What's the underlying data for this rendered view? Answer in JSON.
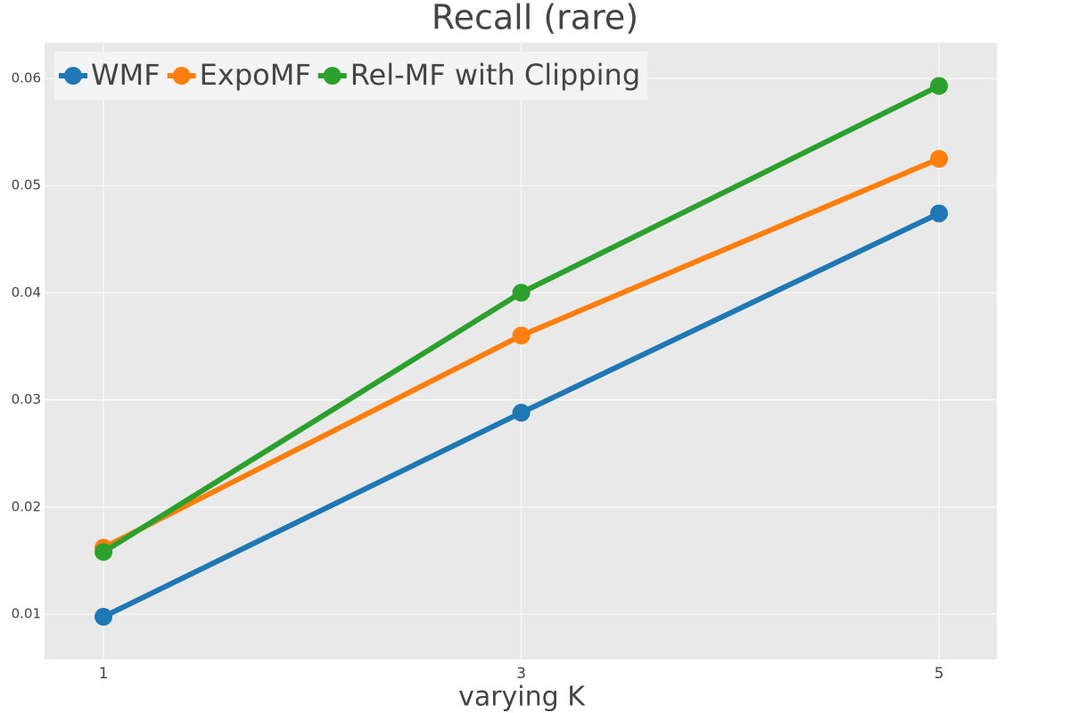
{
  "chart_data": {
    "type": "line",
    "title": "Recall (rare)",
    "x_label": "varying K",
    "x": [
      1,
      3,
      5
    ],
    "series": [
      {
        "name": "WMF",
        "color": "#1f77b4",
        "values": [
          0.00975,
          0.0288,
          0.0474
        ]
      },
      {
        "name": "ExpoMF",
        "color": "#ff7f0e",
        "values": [
          0.0162,
          0.036,
          0.0525
        ]
      },
      {
        "name": "Rel-MF with Clipping",
        "color": "#2ca02c",
        "values": [
          0.0158,
          0.04,
          0.0593
        ]
      }
    ],
    "xlim": [
      0.718,
      5.277
    ],
    "xticks": [
      1,
      3,
      5
    ],
    "ylim": [
      0.00576,
      0.06333
    ],
    "yticks": [
      0.01,
      0.02,
      0.03,
      0.04,
      0.05,
      0.06
    ],
    "grid": true,
    "legend": "top-left"
  }
}
